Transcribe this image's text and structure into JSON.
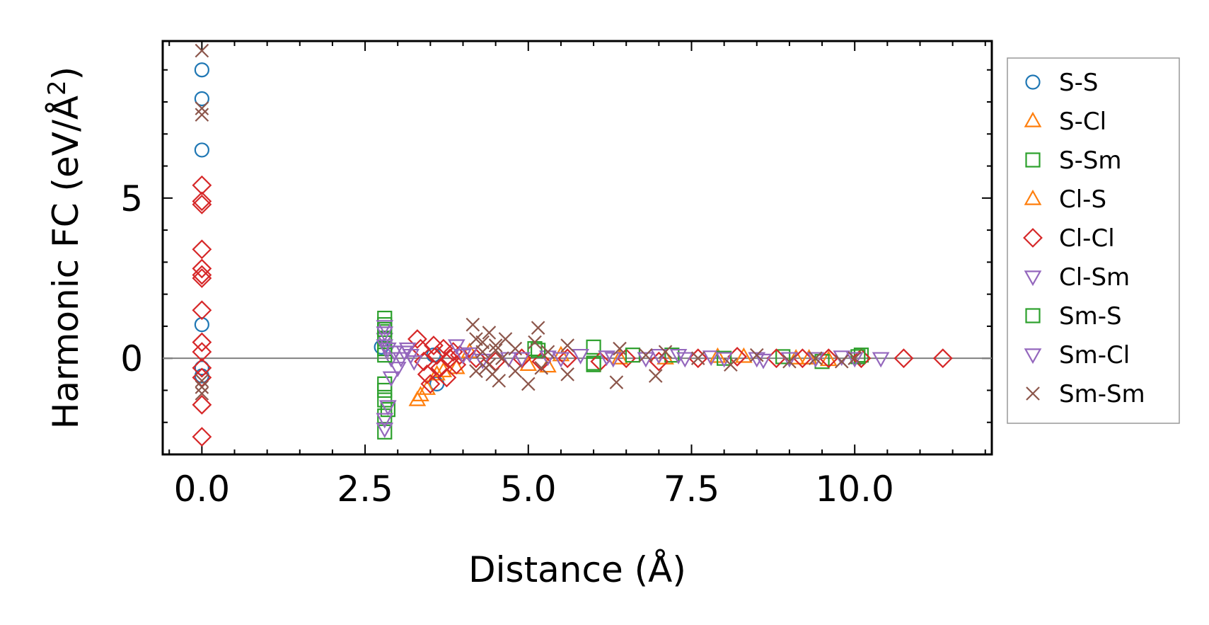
{
  "chart_data": {
    "type": "scatter",
    "title": "",
    "xlabel": "Distance (Å)",
    "ylabel_main": "Harmonic FC (eV/Å",
    "ylabel_sup": "2",
    "ylabel_close": ")",
    "xlim": [
      -0.6,
      12.1
    ],
    "ylim": [
      -3.0,
      9.9
    ],
    "xticks": [
      0.0,
      2.5,
      5.0,
      7.5,
      10.0
    ],
    "xtick_labels": [
      "0.0",
      "2.5",
      "5.0",
      "7.5",
      "10.0"
    ],
    "yticks": [
      0,
      5
    ],
    "ytick_labels": [
      "0",
      "5"
    ],
    "zero_line": true,
    "grid": false,
    "legend_position": "outside-right",
    "series": [
      {
        "name": "S-S",
        "marker": "circle",
        "color": "#1f77b4",
        "points": [
          [
            0.0,
            9.0
          ],
          [
            0.0,
            8.1
          ],
          [
            0.0,
            6.5
          ],
          [
            0.0,
            1.05
          ],
          [
            0.0,
            -0.3
          ],
          [
            0.0,
            -0.55
          ],
          [
            3.6,
            -0.8
          ],
          [
            2.75,
            0.35
          ],
          [
            3.55,
            0.1
          ]
        ]
      },
      {
        "name": "S-Cl",
        "marker": "triangle-up",
        "color": "#ff7f0e",
        "points": [
          [
            3.3,
            -1.3
          ],
          [
            3.45,
            -0.95
          ],
          [
            3.6,
            -0.5
          ],
          [
            3.9,
            -0.3
          ],
          [
            5.0,
            -0.2
          ],
          [
            5.5,
            0.1
          ],
          [
            7.1,
            0.0
          ],
          [
            8.3,
            0.05
          ],
          [
            9.1,
            0.0
          ],
          [
            9.6,
            -0.05
          ]
        ]
      },
      {
        "name": "S-Sm",
        "marker": "square",
        "color": "#2ca02c",
        "points": [
          [
            2.8,
            1.25
          ],
          [
            2.8,
            1.05
          ],
          [
            2.8,
            0.6
          ],
          [
            2.8,
            0.3
          ],
          [
            2.8,
            -0.8
          ],
          [
            2.8,
            -1.3
          ],
          [
            2.8,
            -2.3
          ],
          [
            2.85,
            -1.6
          ],
          [
            5.1,
            0.3
          ],
          [
            6.0,
            0.35
          ],
          [
            6.0,
            -0.2
          ],
          [
            7.2,
            0.1
          ],
          [
            8.9,
            0.05
          ],
          [
            10.1,
            0.1
          ],
          [
            9.5,
            -0.1
          ]
        ]
      },
      {
        "name": "Cl-S",
        "marker": "triangle-up",
        "color": "#ff7f0e",
        "points": [
          [
            3.35,
            -1.15
          ],
          [
            3.7,
            -0.4
          ],
          [
            4.1,
            0.2
          ],
          [
            5.3,
            -0.25
          ],
          [
            6.4,
            0.0
          ],
          [
            7.9,
            0.05
          ],
          [
            9.3,
            0.0
          ]
        ]
      },
      {
        "name": "Cl-Cl",
        "marker": "diamond",
        "color": "#d62728",
        "points": [
          [
            0.0,
            5.4
          ],
          [
            0.0,
            4.9
          ],
          [
            0.0,
            4.8
          ],
          [
            0.0,
            3.4
          ],
          [
            0.0,
            2.8
          ],
          [
            0.0,
            2.6
          ],
          [
            0.0,
            2.5
          ],
          [
            0.0,
            1.5
          ],
          [
            0.0,
            0.5
          ],
          [
            0.0,
            0.2
          ],
          [
            0.0,
            -0.3
          ],
          [
            0.0,
            -0.6
          ],
          [
            0.0,
            -1.45
          ],
          [
            0.0,
            -2.45
          ],
          [
            3.3,
            0.6
          ],
          [
            3.35,
            0.3
          ],
          [
            3.4,
            -0.1
          ],
          [
            3.45,
            -0.5
          ],
          [
            3.5,
            -0.8
          ],
          [
            3.55,
            0.4
          ],
          [
            3.6,
            0.1
          ],
          [
            3.65,
            -0.3
          ],
          [
            3.7,
            0.3
          ],
          [
            3.75,
            -0.6
          ],
          [
            3.8,
            0.0
          ],
          [
            3.85,
            0.2
          ],
          [
            3.9,
            -0.2
          ],
          [
            3.95,
            0.1
          ],
          [
            4.2,
            0.0
          ],
          [
            4.5,
            -0.1
          ],
          [
            4.9,
            0.0
          ],
          [
            5.2,
            -0.1
          ],
          [
            5.6,
            0.0
          ],
          [
            6.1,
            -0.1
          ],
          [
            6.5,
            0.0
          ],
          [
            7.0,
            -0.1
          ],
          [
            7.6,
            0.0
          ],
          [
            8.2,
            0.05
          ],
          [
            8.8,
            0.0
          ],
          [
            9.2,
            0.0
          ],
          [
            9.6,
            0.0
          ],
          [
            10.1,
            0.0
          ],
          [
            10.75,
            0.0
          ],
          [
            11.35,
            0.0
          ]
        ]
      },
      {
        "name": "Cl-Sm",
        "marker": "triangle-down",
        "color": "#9467bd",
        "points": [
          [
            2.8,
            1.0
          ],
          [
            2.8,
            0.6
          ],
          [
            2.85,
            0.3
          ],
          [
            2.9,
            0.0
          ],
          [
            3.0,
            -0.3
          ],
          [
            3.1,
            0.2
          ],
          [
            3.2,
            0.1
          ],
          [
            3.9,
            0.4
          ],
          [
            4.0,
            0.1
          ],
          [
            4.3,
            -0.05
          ],
          [
            4.9,
            0.0
          ],
          [
            5.3,
            0.05
          ],
          [
            5.8,
            0.1
          ],
          [
            6.3,
            0.0
          ],
          [
            7.0,
            0.1
          ],
          [
            7.4,
            0.0
          ],
          [
            7.8,
            0.05
          ],
          [
            8.5,
            0.0
          ],
          [
            9.0,
            0.0
          ],
          [
            9.8,
            0.05
          ],
          [
            10.4,
            0.0
          ]
        ]
      },
      {
        "name": "Sm-S",
        "marker": "square",
        "color": "#2ca02c",
        "points": [
          [
            2.8,
            0.9
          ],
          [
            2.8,
            0.1
          ],
          [
            2.8,
            -1.0
          ],
          [
            2.8,
            -1.8
          ],
          [
            5.15,
            0.25
          ],
          [
            6.0,
            -0.15
          ],
          [
            6.6,
            0.1
          ],
          [
            8.0,
            0.0
          ],
          [
            10.05,
            0.05
          ]
        ]
      },
      {
        "name": "Sm-Cl",
        "marker": "triangle-down",
        "color": "#9467bd",
        "points": [
          [
            2.8,
            0.8
          ],
          [
            2.8,
            0.4
          ],
          [
            2.8,
            -1.9
          ],
          [
            2.8,
            -2.2
          ],
          [
            2.85,
            -1.5
          ],
          [
            2.9,
            -0.6
          ],
          [
            2.95,
            0.2
          ],
          [
            3.05,
            0.0
          ],
          [
            3.15,
            0.3
          ],
          [
            3.25,
            -0.1
          ],
          [
            4.1,
            0.15
          ],
          [
            4.7,
            0.0
          ],
          [
            5.5,
            0.0
          ],
          [
            6.2,
            0.05
          ],
          [
            6.8,
            0.0
          ],
          [
            7.3,
            0.1
          ],
          [
            8.0,
            0.0
          ],
          [
            8.6,
            -0.05
          ],
          [
            9.4,
            0.0
          ],
          [
            10.0,
            0.0
          ]
        ]
      },
      {
        "name": "Sm-Sm",
        "marker": "x",
        "color": "#8c564b",
        "points": [
          [
            0.0,
            9.6
          ],
          [
            0.0,
            7.8
          ],
          [
            0.0,
            7.6
          ],
          [
            0.0,
            -0.9
          ],
          [
            0.0,
            -1.1
          ],
          [
            0.0,
            -0.7
          ],
          [
            4.15,
            1.05
          ],
          [
            4.2,
            0.6
          ],
          [
            4.3,
            0.2
          ],
          [
            4.35,
            -0.3
          ],
          [
            4.4,
            0.8
          ],
          [
            4.45,
            -0.5
          ],
          [
            4.5,
            0.4
          ],
          [
            4.55,
            -0.7
          ],
          [
            4.6,
            0.0
          ],
          [
            4.65,
            0.6
          ],
          [
            4.2,
            -0.4
          ],
          [
            4.3,
            0.5
          ],
          [
            4.4,
            -0.2
          ],
          [
            4.5,
            0.25
          ],
          [
            4.8,
            0.3
          ],
          [
            4.8,
            -0.4
          ],
          [
            5.0,
            -0.8
          ],
          [
            5.1,
            0.5
          ],
          [
            5.15,
            0.95
          ],
          [
            5.2,
            -0.3
          ],
          [
            5.3,
            0.2
          ],
          [
            5.6,
            0.4
          ],
          [
            5.6,
            -0.5
          ],
          [
            6.4,
            0.3
          ],
          [
            6.35,
            -0.75
          ],
          [
            6.8,
            0.1
          ],
          [
            6.95,
            -0.55
          ],
          [
            7.1,
            0.2
          ],
          [
            7.6,
            0.0
          ],
          [
            8.1,
            -0.2
          ],
          [
            8.5,
            0.1
          ],
          [
            9.0,
            -0.1
          ],
          [
            9.4,
            0.0
          ],
          [
            9.8,
            -0.1
          ],
          [
            10.0,
            0.0
          ]
        ]
      }
    ]
  }
}
